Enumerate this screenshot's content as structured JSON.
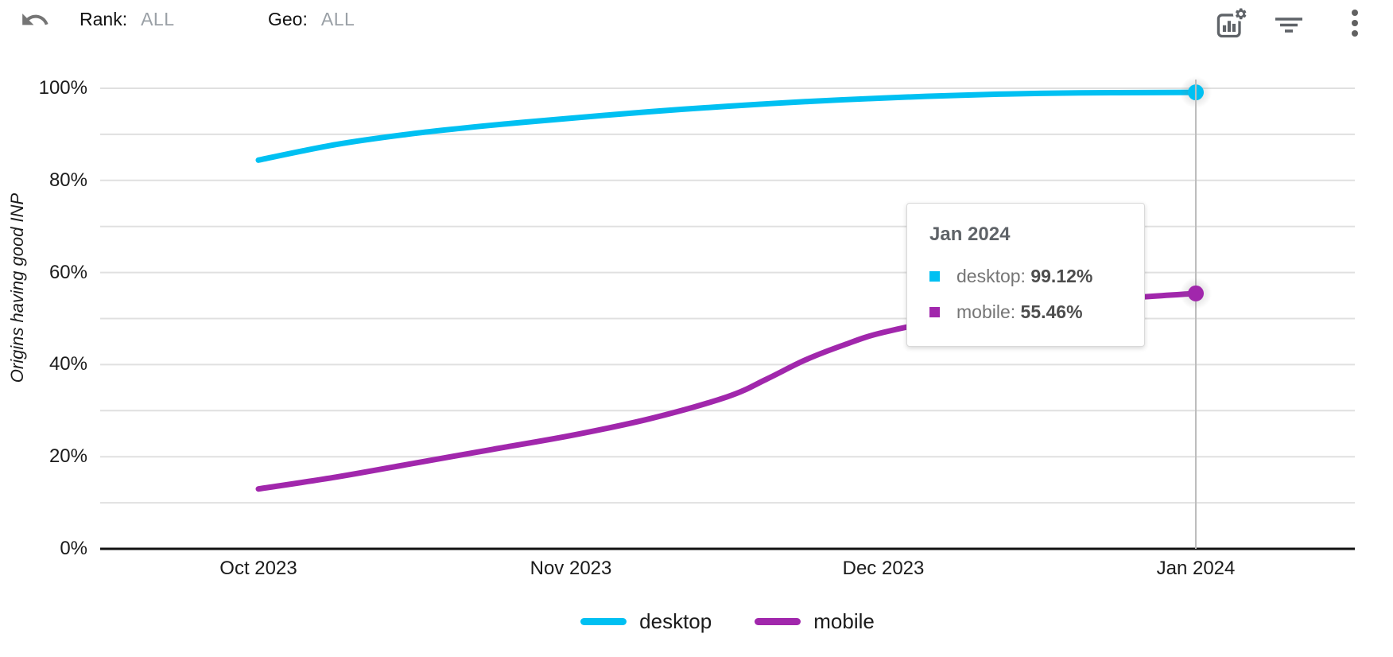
{
  "toolbar": {
    "rank_label": "Rank:",
    "rank_value": "ALL",
    "geo_label": "Geo:",
    "geo_value": "ALL",
    "icons": [
      "undo-icon",
      "chart-settings-icon",
      "filter-icon",
      "more-vert-icon"
    ]
  },
  "colors": {
    "desktop": "#00C0F2",
    "mobile": "#A127AC",
    "grid": "#E0E0E0",
    "axis": "#111111",
    "crosshair": "#BDBDBD",
    "icon": "#5F6368",
    "muted_text": "#9AA0A6",
    "tooltip_title": "#5F6368"
  },
  "chart_data": {
    "type": "line",
    "title": "",
    "xlabel": "",
    "ylabel": "Origins having good INP",
    "x_tick_labels": [
      "Oct 2023",
      "Nov 2023",
      "Dec 2023",
      "Jan 2024"
    ],
    "y_tick_labels": [
      "0%",
      "20%",
      "40%",
      "60%",
      "80%",
      "100%"
    ],
    "ylim": [
      0,
      100
    ],
    "y_grid_step_pct": 10,
    "grid": true,
    "legend_position": "bottom",
    "series": [
      {
        "name": "desktop",
        "color": "#00C0F2",
        "monthly_values": [
          84.4,
          93.5,
          97.9,
          99.12
        ],
        "points": [
          [
            0,
            84.4
          ],
          [
            0.25,
            87.8
          ],
          [
            0.5,
            90.2
          ],
          [
            0.75,
            92.0
          ],
          [
            1,
            93.5
          ],
          [
            1.25,
            94.9
          ],
          [
            1.5,
            96.1
          ],
          [
            1.75,
            97.1
          ],
          [
            2,
            97.9
          ],
          [
            2.25,
            98.5
          ],
          [
            2.5,
            98.9
          ],
          [
            2.75,
            99.05
          ],
          [
            3,
            99.12
          ]
        ]
      },
      {
        "name": "mobile",
        "color": "#A127AC",
        "monthly_values": [
          13.0,
          24.6,
          47.0,
          55.46
        ],
        "points": [
          [
            0,
            13.0
          ],
          [
            0.25,
            15.6
          ],
          [
            0.5,
            18.6
          ],
          [
            0.75,
            21.6
          ],
          [
            1,
            24.6
          ],
          [
            1.25,
            28.2
          ],
          [
            1.5,
            33.0
          ],
          [
            1.625,
            36.8
          ],
          [
            1.75,
            41.0
          ],
          [
            1.875,
            44.3
          ],
          [
            2,
            47.0
          ],
          [
            2.25,
            50.4
          ],
          [
            2.5,
            52.7
          ],
          [
            2.75,
            54.3
          ],
          [
            3,
            55.46
          ]
        ]
      }
    ],
    "highlight": {
      "x_label": "Jan 2024",
      "x_index": 3,
      "values": [
        99.12,
        55.46
      ]
    }
  },
  "tooltip": {
    "title": "Jan 2024",
    "items": [
      {
        "series": "desktop",
        "label": "desktop: ",
        "value": "99.12%",
        "color": "#00C0F2"
      },
      {
        "series": "mobile",
        "label": "mobile: ",
        "value": "55.46%",
        "color": "#A127AC"
      }
    ]
  }
}
